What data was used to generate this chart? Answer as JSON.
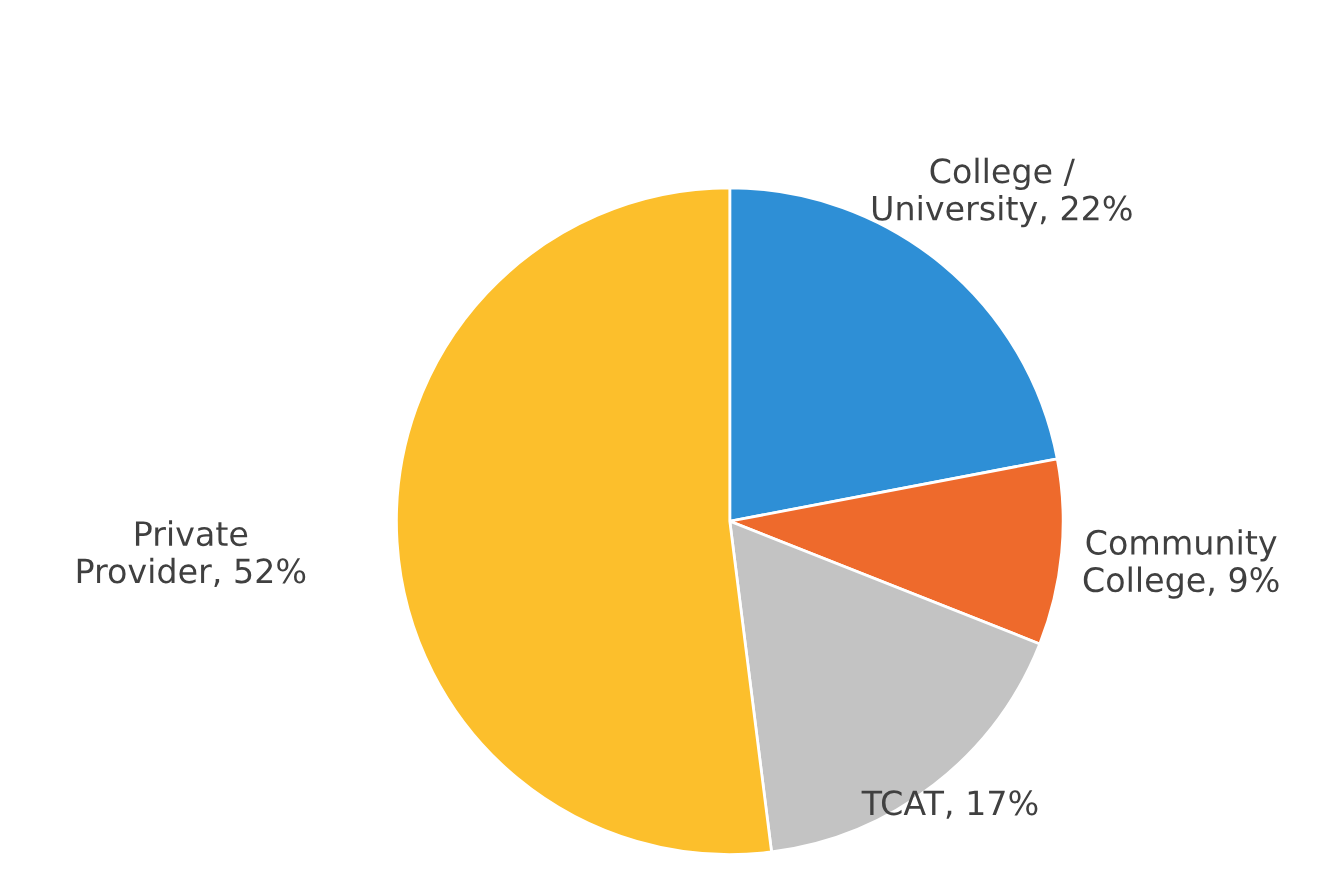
{
  "chart_data": {
    "type": "pie",
    "categories": [
      "College / University",
      "Community College",
      "TCAT",
      "Private Provider"
    ],
    "values": [
      22,
      9,
      17,
      52
    ],
    "value_labels": [
      "22%",
      "9%",
      "17%",
      "52%"
    ],
    "colors": [
      "#2e8fd6",
      "#ee6a2c",
      "#c3c3c3",
      "#fcbf2c"
    ],
    "legend": false
  }
}
